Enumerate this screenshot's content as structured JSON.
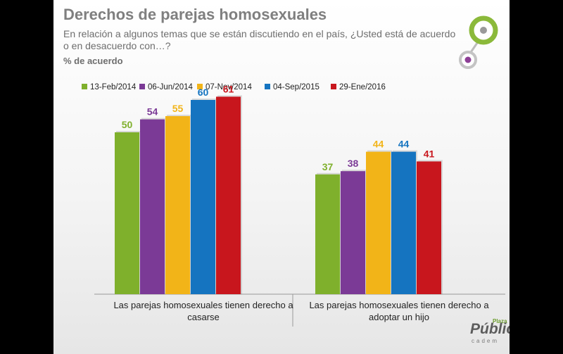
{
  "header": {
    "title": "Derechos de parejas homosexuales",
    "subtitle": "En relación a algunos temas que se están discutiendo en el país, ¿Usted está de acuerdo o en desacuerdo con…?",
    "unit_label": "% de acuerdo"
  },
  "branding": {
    "plaza": "Plaza",
    "publica": "Pública",
    "cadem": "cadem"
  },
  "colors": {
    "series": [
      "#7fb02c",
      "#7b3a96",
      "#f2b418",
      "#1574c0",
      "#c8161d"
    ],
    "logo_ring": "#8bb93a",
    "logo_dot": "#8d3f96"
  },
  "chart_data": {
    "type": "bar",
    "categories": [
      "Las parejas homosexuales tienen derecho a casarse",
      "Las parejas homosexuales tienen derecho a adoptar un hijo"
    ],
    "category_lines": [
      [
        "Las parejas homosexuales tienen derecho a",
        "casarse"
      ],
      [
        "Las parejas homosexuales tienen derecho a",
        "adoptar un hijo"
      ]
    ],
    "series": [
      {
        "name": "13-Feb/2014",
        "values": [
          50,
          37
        ]
      },
      {
        "name": "06-Jun/2014",
        "values": [
          54,
          38
        ]
      },
      {
        "name": "07-Nov/2014",
        "values": [
          55,
          44
        ]
      },
      {
        "name": "04-Sep/2015",
        "values": [
          60,
          44
        ]
      },
      {
        "name": "29-Ene/2016",
        "values": [
          61,
          41
        ]
      }
    ],
    "ylim": [
      0,
      100
    ],
    "legend_position": "top",
    "grid": false,
    "data_labels": true
  }
}
